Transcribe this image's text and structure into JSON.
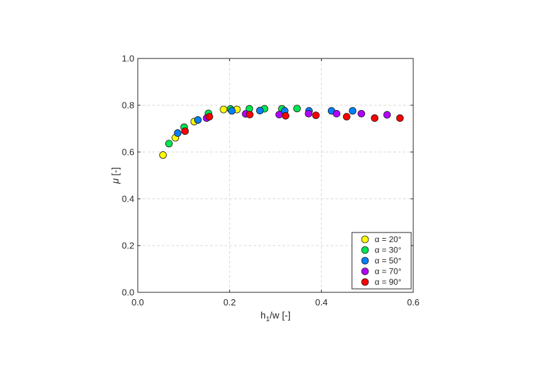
{
  "chart_data": {
    "type": "scatter",
    "title": "",
    "xlabel": {
      "main": "h",
      "sub": "1",
      "rest": "/w [-]"
    },
    "ylabel": {
      "symbol": "μ",
      "rest": " [-]"
    },
    "xlim": [
      0.0,
      0.6
    ],
    "ylim": [
      0.0,
      1.0
    ],
    "xticks": [
      "0.0",
      "0.2",
      "0.4",
      "0.6"
    ],
    "yticks": [
      "0.0",
      "0.2",
      "0.4",
      "0.6",
      "0.8",
      "1.0"
    ],
    "xtick_values": [
      0.0,
      0.2,
      0.4,
      0.6
    ],
    "ytick_values": [
      0.0,
      0.2,
      0.4,
      0.6,
      0.8,
      1.0
    ],
    "xgrid_values": [
      0.2,
      0.4
    ],
    "ygrid_values": [
      0.2,
      0.4,
      0.6,
      0.8
    ],
    "grid": true,
    "legend_placement": "bottom-right",
    "series": [
      {
        "name": "α = 20°",
        "color": "#ffff00",
        "points": [
          [
            0.055,
            0.587
          ],
          [
            0.082,
            0.661
          ],
          [
            0.123,
            0.73
          ],
          [
            0.187,
            0.782
          ],
          [
            0.216,
            0.782
          ]
        ]
      },
      {
        "name": "α = 30°",
        "color": "#00e650",
        "points": [
          [
            0.068,
            0.636
          ],
          [
            0.101,
            0.706
          ],
          [
            0.154,
            0.765
          ],
          [
            0.202,
            0.784
          ],
          [
            0.243,
            0.785
          ],
          [
            0.276,
            0.785
          ],
          [
            0.314,
            0.785
          ],
          [
            0.347,
            0.786
          ]
        ]
      },
      {
        "name": "α = 50°",
        "color": "#0080ff",
        "points": [
          [
            0.087,
            0.681
          ],
          [
            0.131,
            0.737
          ],
          [
            0.205,
            0.776
          ],
          [
            0.266,
            0.777
          ],
          [
            0.32,
            0.776
          ],
          [
            0.373,
            0.776
          ],
          [
            0.422,
            0.776
          ],
          [
            0.468,
            0.776
          ]
        ]
      },
      {
        "name": "α = 70°",
        "color": "#b400ff",
        "points": [
          [
            0.15,
            0.745
          ],
          [
            0.235,
            0.763
          ],
          [
            0.308,
            0.76
          ],
          [
            0.372,
            0.764
          ],
          [
            0.433,
            0.764
          ],
          [
            0.487,
            0.764
          ],
          [
            0.543,
            0.759
          ]
        ]
      },
      {
        "name": "α = 90°",
        "color": "#ff0000",
        "points": [
          [
            0.103,
            0.689
          ],
          [
            0.156,
            0.751
          ],
          [
            0.244,
            0.76
          ],
          [
            0.322,
            0.755
          ],
          [
            0.388,
            0.757
          ],
          [
            0.455,
            0.751
          ],
          [
            0.516,
            0.745
          ],
          [
            0.571,
            0.745
          ]
        ]
      }
    ]
  }
}
